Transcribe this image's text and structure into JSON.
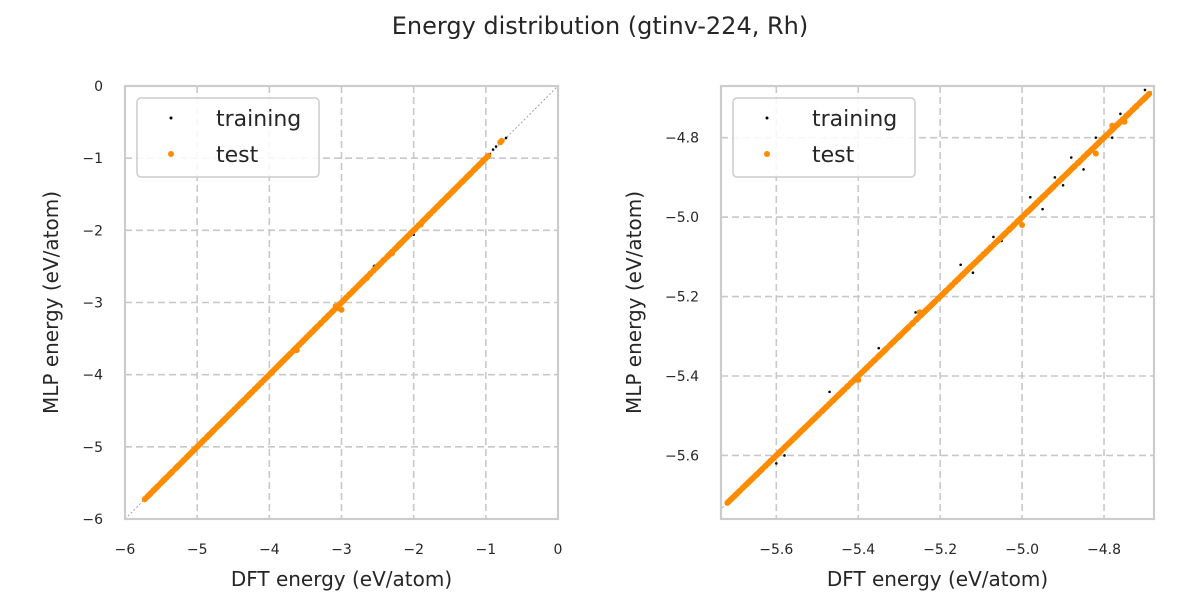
{
  "title": "Energy distribution (gtinv-224, Rh)",
  "colors": {
    "training": "#000000",
    "test": "#ff8c00"
  },
  "chart_data": [
    {
      "type": "scatter",
      "xlabel": "DFT energy (eV/atom)",
      "ylabel": "MLP energy (eV/atom)",
      "xlim": [
        -6,
        0
      ],
      "ylim": [
        -6,
        0
      ],
      "xticks": [
        -6,
        -5,
        -4,
        -3,
        -2,
        -1,
        0
      ],
      "yticks": [
        -6,
        -5,
        -4,
        -3,
        -2,
        -1,
        0
      ],
      "xtick_labels": [
        "−6",
        "−5",
        "−4",
        "−3",
        "−2",
        "−1",
        "0"
      ],
      "ytick_labels": [
        "−6",
        "−5",
        "−4",
        "−3",
        "−2",
        "−1",
        "0"
      ],
      "grid": true,
      "diagonal_reference": true,
      "legend_position": "top-left",
      "series": [
        {
          "name": "training",
          "marker": "small-dot",
          "segments": [
            [
              -5.72,
              -5.72
            ],
            [
              -3.55,
              -3.55
            ],
            [
              -3.45,
              -3.45
            ],
            [
              -3.35,
              -3.35
            ],
            [
              -3.25,
              -3.25
            ],
            [
              -3.2,
              -3.2
            ],
            [
              -3.0,
              -3.0
            ],
            [
              -2.95,
              -2.95
            ],
            [
              -2.85,
              -2.85
            ],
            [
              -2.75,
              -2.75
            ],
            [
              -2.6,
              -2.6
            ],
            [
              -2.55,
              -2.5
            ],
            [
              -2.5,
              -2.48
            ],
            [
              -2.45,
              -2.45
            ],
            [
              -2.35,
              -2.35
            ],
            [
              -2.25,
              -2.25
            ],
            [
              -2.15,
              -2.15
            ],
            [
              -2.05,
              -2.07
            ],
            [
              -1.95,
              -1.95
            ],
            [
              -1.85,
              -1.85
            ],
            [
              -1.2,
              -1.2
            ],
            [
              -1.1,
              -1.1
            ],
            [
              -1.0,
              -1.0
            ],
            [
              -0.9,
              -0.9
            ],
            [
              -0.85,
              -0.83
            ],
            [
              -0.72,
              -0.72
            ]
          ],
          "points": [
            [
              -2.55,
              -2.5
            ],
            [
              -2.0,
              -2.06
            ],
            [
              -0.72,
              -0.72
            ],
            [
              -0.9,
              -0.88
            ],
            [
              -3.3,
              -3.3
            ]
          ]
        },
        {
          "name": "test",
          "marker": "dot",
          "segments": [
            [
              -5.72,
              -5.72
            ],
            [
              -3.65,
              -3.65
            ],
            [
              -3.05,
              -3.05
            ],
            [
              -1.32,
              -1.32
            ],
            [
              -0.96,
              -0.96
            ]
          ],
          "points": [
            [
              -3.62,
              -3.66
            ],
            [
              -3.05,
              -3.08
            ],
            [
              -3.0,
              -3.1
            ],
            [
              -3.08,
              -3.05
            ],
            [
              -2.72,
              -2.72
            ],
            [
              -2.65,
              -2.66
            ],
            [
              -2.35,
              -2.35
            ],
            [
              -2.3,
              -2.32
            ],
            [
              -2.2,
              -2.2
            ],
            [
              -1.9,
              -1.92
            ],
            [
              -1.8,
              -1.8
            ],
            [
              -1.62,
              -1.62
            ],
            [
              -1.52,
              -1.52
            ],
            [
              -1.45,
              -1.45
            ],
            [
              -0.8,
              -0.78
            ],
            [
              -0.78,
              -0.76
            ]
          ]
        }
      ]
    },
    {
      "type": "scatter",
      "xlabel": "DFT energy (eV/atom)",
      "ylabel": "MLP energy (eV/atom)",
      "xlim": [
        -5.735,
        -4.678
      ],
      "ylim": [
        -5.76,
        -4.67
      ],
      "xticks": [
        -5.6,
        -5.4,
        -5.2,
        -5.0,
        -4.8
      ],
      "yticks": [
        -5.6,
        -5.4,
        -5.2,
        -5.0,
        -4.8
      ],
      "xtick_labels": [
        "−5.6",
        "−5.4",
        "−5.2",
        "−5.0",
        "−4.8"
      ],
      "ytick_labels": [
        "−5.6",
        "−5.4",
        "−5.2",
        "−5.0",
        "−4.8"
      ],
      "grid": true,
      "diagonal_reference": true,
      "legend_position": "top-left",
      "series": [
        {
          "name": "training",
          "marker": "small-dot",
          "segments": [
            [
              -5.72,
              -5.72
            ],
            [
              -4.69,
              -4.69
            ]
          ],
          "points": [
            [
              -5.6,
              -5.62
            ],
            [
              -5.58,
              -5.6
            ],
            [
              -5.5,
              -5.5
            ],
            [
              -5.47,
              -5.44
            ],
            [
              -5.46,
              -5.46
            ],
            [
              -5.45,
              -5.45
            ],
            [
              -5.42,
              -5.42
            ],
            [
              -5.35,
              -5.33
            ],
            [
              -5.26,
              -5.24
            ],
            [
              -5.2,
              -5.2
            ],
            [
              -5.15,
              -5.12
            ],
            [
              -5.12,
              -5.14
            ],
            [
              -5.07,
              -5.05
            ],
            [
              -5.05,
              -5.06
            ],
            [
              -5.0,
              -5.0
            ],
            [
              -4.98,
              -4.95
            ],
            [
              -4.95,
              -4.98
            ],
            [
              -4.92,
              -4.9
            ],
            [
              -4.9,
              -4.92
            ],
            [
              -4.88,
              -4.85
            ],
            [
              -4.85,
              -4.88
            ],
            [
              -4.82,
              -4.8
            ],
            [
              -4.78,
              -4.8
            ],
            [
              -4.76,
              -4.74
            ],
            [
              -4.72,
              -4.72
            ],
            [
              -4.7,
              -4.68
            ]
          ]
        },
        {
          "name": "test",
          "marker": "dot",
          "segments": [
            [
              -5.72,
              -5.72
            ],
            [
              -4.69,
              -4.69
            ]
          ],
          "points": [
            [
              -5.7,
              -5.7
            ],
            [
              -5.64,
              -5.64
            ],
            [
              -5.55,
              -5.55
            ],
            [
              -5.4,
              -5.41
            ],
            [
              -5.3,
              -5.3
            ],
            [
              -5.25,
              -5.24
            ],
            [
              -5.22,
              -5.22
            ],
            [
              -5.03,
              -5.03
            ],
            [
              -5.0,
              -5.02
            ],
            [
              -4.97,
              -4.97
            ],
            [
              -4.9,
              -4.9
            ],
            [
              -4.85,
              -4.85
            ],
            [
              -4.82,
              -4.84
            ],
            [
              -4.8,
              -4.8
            ],
            [
              -4.78,
              -4.77
            ],
            [
              -4.75,
              -4.76
            ],
            [
              -4.72,
              -4.72
            ],
            [
              -4.7,
              -4.7
            ]
          ]
        }
      ]
    }
  ]
}
